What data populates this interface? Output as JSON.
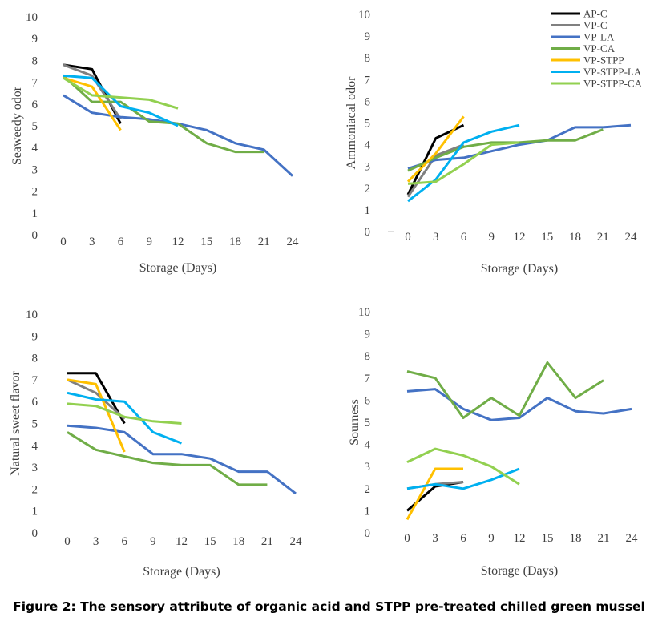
{
  "caption": "Figure 2: The sensory attribute of organic acid and STPP pre-treated chilled green mussel",
  "colors": {
    "AP-C": "#000000",
    "VP-C": "#808080",
    "VP-LA": "#4472C4",
    "VP-CA": "#70AD47",
    "VP-STPP": "#FFC000",
    "VP-STPP-LA": "#00B0F0",
    "VP-STPP-CA": "#92D050",
    "axis_text": "#404040"
  },
  "legend": [
    "AP-C",
    "VP-C",
    "VP-LA",
    "VP-CA",
    "VP-STPP",
    "VP-STPP-LA",
    "VP-STPP-CA"
  ],
  "chart_data": [
    {
      "type": "line",
      "id": "seaweedy",
      "title": "",
      "xlabel": "Storage (Days)",
      "ylabel": "Seaweedy odor",
      "x_ticks": [
        "0",
        "3",
        "6",
        "9",
        "12",
        "15",
        "18",
        "21",
        "24"
      ],
      "y_ticks": [
        "0",
        "1",
        "2",
        "3",
        "4",
        "5",
        "6",
        "7",
        "8",
        "9",
        "10"
      ],
      "ylim": [
        0,
        10
      ],
      "series": [
        {
          "name": "AP-C",
          "x": [
            0,
            3,
            6
          ],
          "y": [
            7.8,
            7.6,
            5.1
          ]
        },
        {
          "name": "VP-C",
          "x": [
            0,
            3,
            6
          ],
          "y": [
            7.8,
            7.3,
            5.3
          ]
        },
        {
          "name": "VP-LA",
          "x": [
            0,
            3,
            6,
            9,
            12,
            15,
            18,
            21,
            24
          ],
          "y": [
            6.4,
            5.6,
            5.4,
            5.3,
            5.1,
            4.8,
            4.2,
            3.9,
            2.7
          ]
        },
        {
          "name": "VP-CA",
          "x": [
            0,
            3,
            6,
            9,
            12,
            15,
            18,
            21
          ],
          "y": [
            7.3,
            6.1,
            6.1,
            5.2,
            5.1,
            4.2,
            3.8,
            3.8
          ]
        },
        {
          "name": "VP-STPP",
          "x": [
            0,
            3,
            6
          ],
          "y": [
            7.2,
            6.8,
            4.8
          ]
        },
        {
          "name": "VP-STPP-LA",
          "x": [
            0,
            3,
            6,
            9,
            12
          ],
          "y": [
            7.3,
            7.2,
            5.9,
            5.6,
            5.0
          ]
        },
        {
          "name": "VP-STPP-CA",
          "x": [
            0,
            3,
            6,
            9,
            12
          ],
          "y": [
            7.2,
            6.4,
            6.3,
            6.2,
            5.8
          ]
        }
      ]
    },
    {
      "type": "line",
      "id": "ammoniacal",
      "title": "",
      "xlabel": "Storage (Days)",
      "ylabel": "Ammoniacal odor",
      "x_ticks": [
        "0",
        "3",
        "6",
        "9",
        "12",
        "15",
        "18",
        "21",
        "24"
      ],
      "y_ticks": [
        "0",
        "1",
        "2",
        "3",
        "4",
        "5",
        "6",
        "7",
        "8",
        "9",
        "10"
      ],
      "ylim": [
        0,
        10
      ],
      "series": [
        {
          "name": "AP-C",
          "x": [
            0,
            3,
            6
          ],
          "y": [
            1.7,
            4.3,
            4.9
          ]
        },
        {
          "name": "VP-C",
          "x": [
            0,
            3,
            6
          ],
          "y": [
            1.6,
            3.5,
            4.0
          ]
        },
        {
          "name": "VP-LA",
          "x": [
            0,
            3,
            6,
            9,
            12,
            15,
            18,
            21,
            24
          ],
          "y": [
            2.9,
            3.3,
            3.4,
            3.7,
            4.0,
            4.2,
            4.8,
            4.8,
            4.9
          ]
        },
        {
          "name": "VP-CA",
          "x": [
            0,
            3,
            6,
            9,
            12,
            15,
            18,
            21
          ],
          "y": [
            2.8,
            3.4,
            3.9,
            4.1,
            4.1,
            4.2,
            4.2,
            4.7
          ]
        },
        {
          "name": "VP-STPP",
          "x": [
            0,
            3,
            6
          ],
          "y": [
            2.3,
            3.6,
            5.3
          ]
        },
        {
          "name": "VP-STPP-LA",
          "x": [
            0,
            3,
            6,
            9,
            12
          ],
          "y": [
            1.4,
            2.4,
            4.1,
            4.6,
            4.9
          ]
        },
        {
          "name": "VP-STPP-CA",
          "x": [
            0,
            3,
            6,
            9,
            12
          ],
          "y": [
            2.2,
            2.3,
            3.1,
            4.0,
            4.1
          ]
        }
      ]
    },
    {
      "type": "line",
      "id": "sweet",
      "title": "",
      "xlabel": "Storage (Days)",
      "ylabel": "Natural sweet flavor",
      "x_ticks": [
        "0",
        "3",
        "6",
        "9",
        "12",
        "15",
        "18",
        "21",
        "24"
      ],
      "y_ticks": [
        "0",
        "1",
        "2",
        "3",
        "4",
        "5",
        "6",
        "7",
        "8",
        "9",
        "10"
      ],
      "ylim": [
        0,
        10
      ],
      "series": [
        {
          "name": "AP-C",
          "x": [
            0,
            3,
            6
          ],
          "y": [
            7.3,
            7.3,
            5.0
          ]
        },
        {
          "name": "VP-C",
          "x": [
            0,
            3,
            6
          ],
          "y": [
            7.0,
            6.4,
            5.2
          ]
        },
        {
          "name": "VP-LA",
          "x": [
            0,
            3,
            6,
            9,
            12,
            15,
            18,
            21,
            24
          ],
          "y": [
            4.9,
            4.8,
            4.6,
            3.6,
            3.6,
            3.4,
            2.8,
            2.8,
            1.8
          ]
        },
        {
          "name": "VP-CA",
          "x": [
            0,
            3,
            6,
            9,
            12,
            15,
            18,
            21
          ],
          "y": [
            4.6,
            3.8,
            3.5,
            3.2,
            3.1,
            3.1,
            2.2,
            2.2
          ]
        },
        {
          "name": "VP-STPP",
          "x": [
            0,
            3,
            6
          ],
          "y": [
            7.0,
            6.8,
            3.7
          ]
        },
        {
          "name": "VP-STPP-LA",
          "x": [
            0,
            3,
            6,
            9,
            12
          ],
          "y": [
            6.4,
            6.1,
            6.0,
            4.6,
            4.1
          ]
        },
        {
          "name": "VP-STPP-CA",
          "x": [
            0,
            3,
            6,
            9,
            12
          ],
          "y": [
            5.9,
            5.8,
            5.3,
            5.1,
            5.0
          ]
        }
      ]
    },
    {
      "type": "line",
      "id": "sourness",
      "title": "",
      "xlabel": "Storage (Days)",
      "ylabel": "Sourness",
      "x_ticks": [
        "0",
        "3",
        "6",
        "9",
        "12",
        "15",
        "18",
        "21",
        "24"
      ],
      "y_ticks": [
        "0",
        "1",
        "2",
        "3",
        "4",
        "5",
        "6",
        "7",
        "8",
        "9",
        "10"
      ],
      "ylim": [
        0,
        10
      ],
      "series": [
        {
          "name": "AP-C",
          "x": [
            0,
            3,
            6
          ],
          "y": [
            1.0,
            2.1,
            2.3
          ]
        },
        {
          "name": "VP-C",
          "x": [
            0,
            3,
            6
          ],
          "y": [
            2.0,
            2.2,
            2.3
          ]
        },
        {
          "name": "VP-LA",
          "x": [
            0,
            3,
            6,
            9,
            12,
            15,
            18,
            21,
            24
          ],
          "y": [
            6.4,
            6.5,
            5.6,
            5.1,
            5.2,
            6.1,
            5.5,
            5.4,
            5.6
          ]
        },
        {
          "name": "VP-CA",
          "x": [
            0,
            3,
            6,
            9,
            12,
            15,
            18,
            21
          ],
          "y": [
            7.3,
            7.0,
            5.2,
            6.1,
            5.3,
            7.7,
            6.1,
            6.9
          ]
        },
        {
          "name": "VP-STPP",
          "x": [
            0,
            3,
            6
          ],
          "y": [
            0.6,
            2.9,
            2.9
          ]
        },
        {
          "name": "VP-STPP-LA",
          "x": [
            0,
            3,
            6,
            9,
            12
          ],
          "y": [
            2.0,
            2.2,
            2.0,
            2.4,
            2.9
          ]
        },
        {
          "name": "VP-STPP-CA",
          "x": [
            0,
            3,
            6,
            9,
            12
          ],
          "y": [
            3.2,
            3.8,
            3.5,
            3.0,
            2.2
          ]
        }
      ]
    }
  ]
}
